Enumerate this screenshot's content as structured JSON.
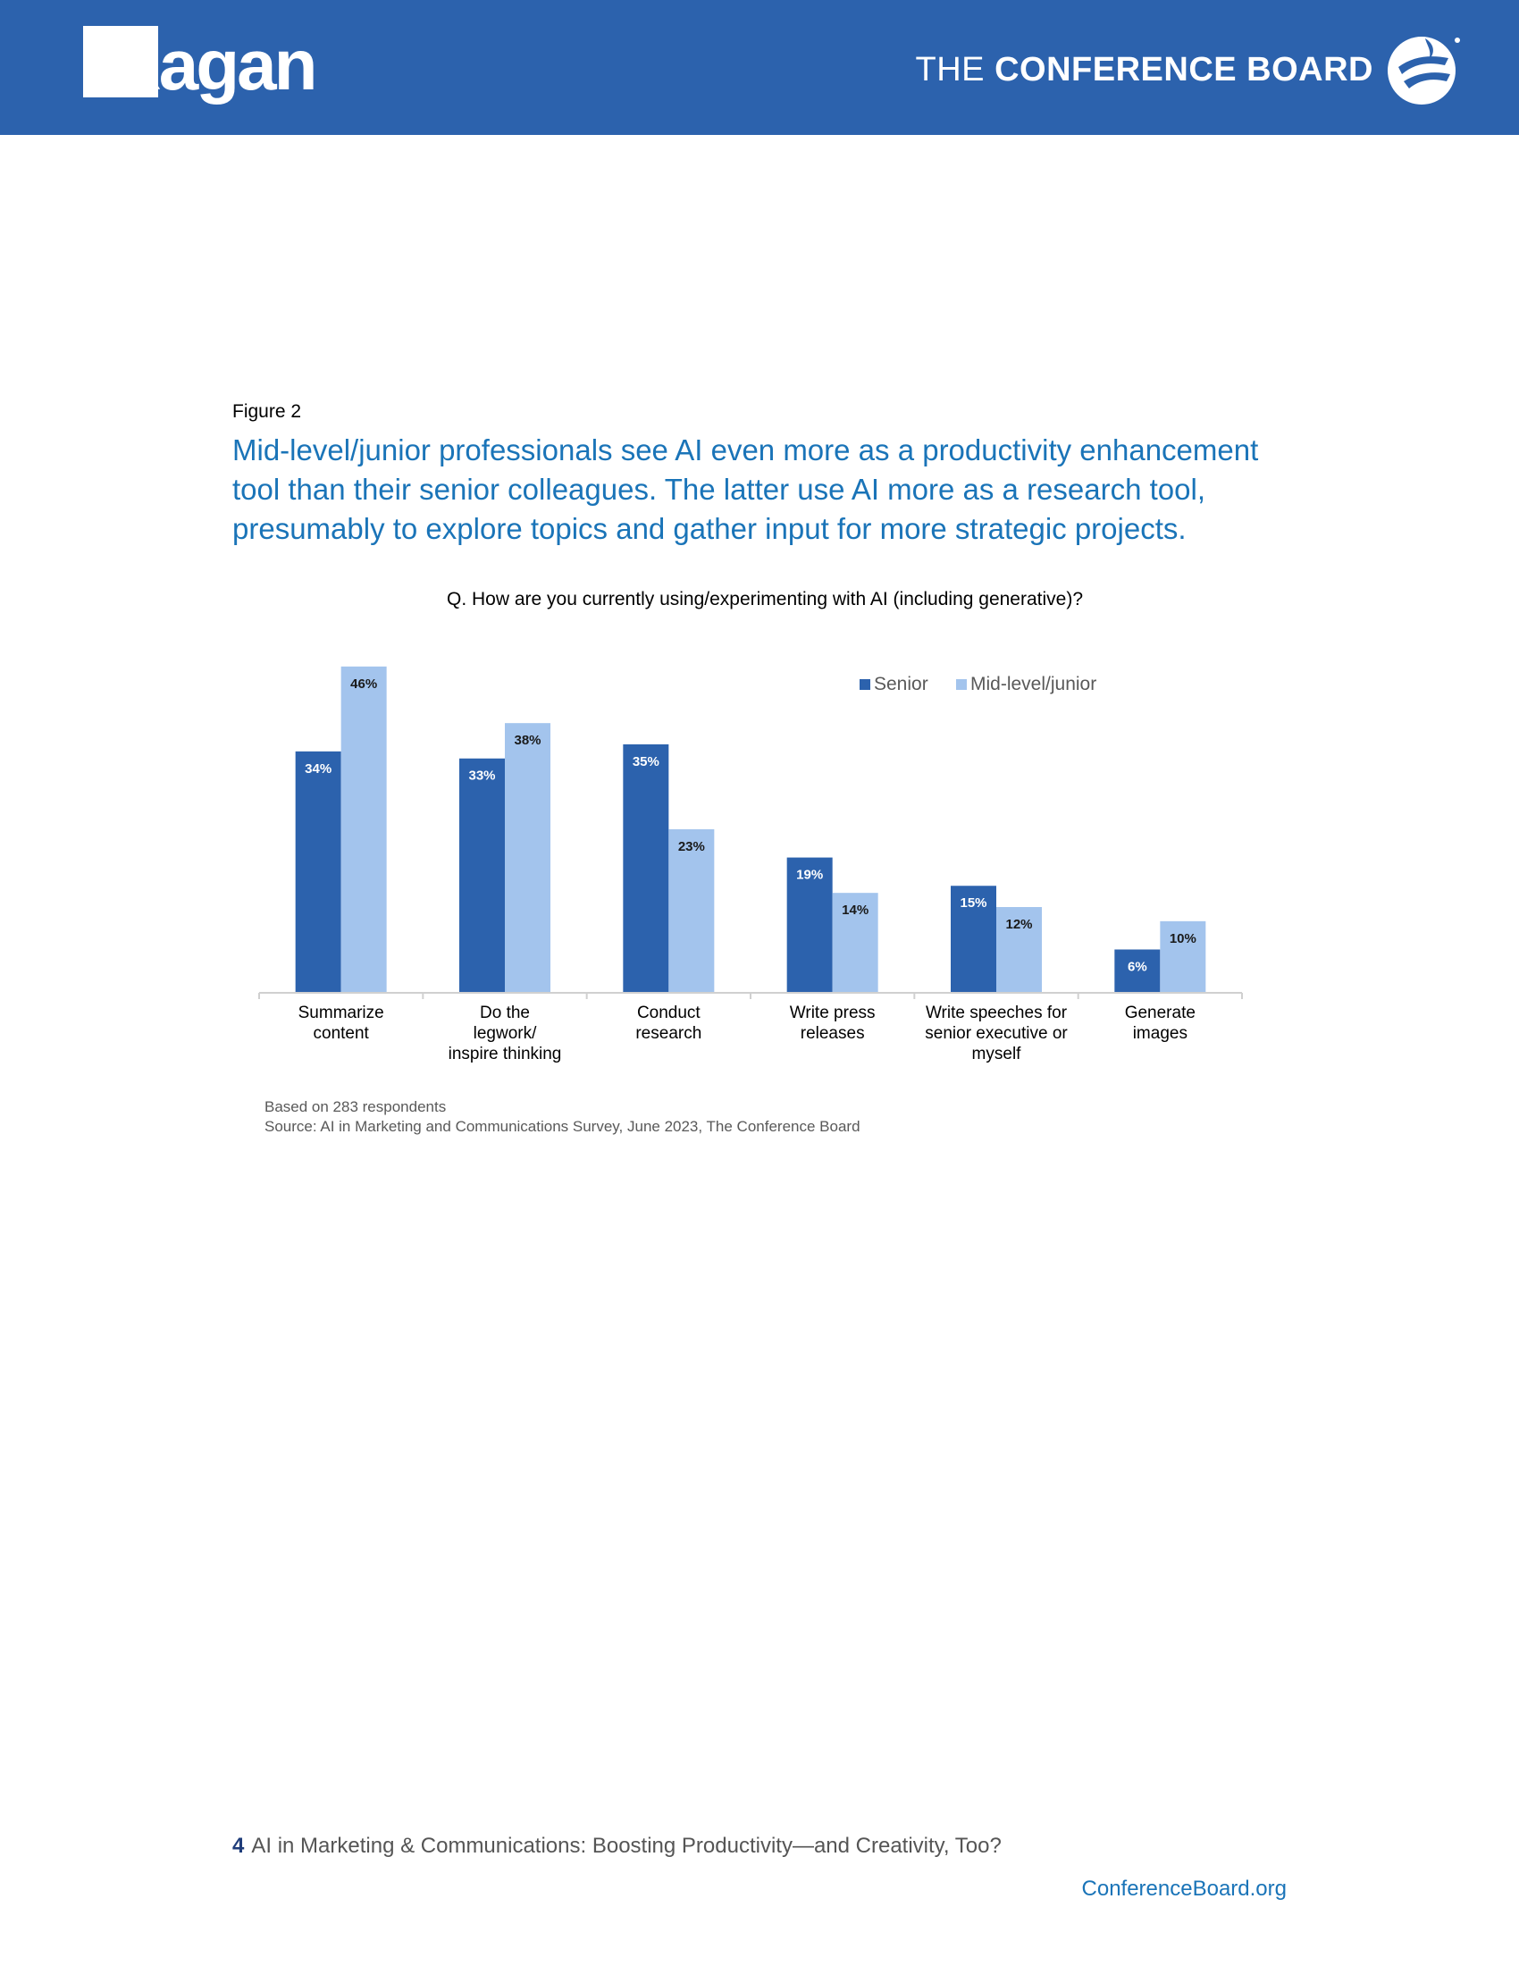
{
  "header": {
    "logo_left_text": "Ragan",
    "logo_right_light": "THE",
    "logo_right_bold": "CONFERENCE BOARD"
  },
  "figure_label": "Figure 2",
  "headline": "Mid-level/junior professionals see AI even more as a productivity enhancement tool than their senior colleagues. The latter use AI more as a research tool, presumably to explore topics and gather input for more strategic projects.",
  "chart_data": {
    "type": "bar",
    "title": "Q. How are you currently using/experimenting with AI (including generative)?",
    "categories": [
      [
        "Summarize",
        "content"
      ],
      [
        "Do the",
        "legwork/",
        "inspire thinking"
      ],
      [
        "Conduct",
        "research"
      ],
      [
        "Write press",
        "releases"
      ],
      [
        "Write speeches for",
        "senior executive or",
        "myself"
      ],
      [
        "Generate",
        "images"
      ]
    ],
    "series": [
      {
        "name": "Senior",
        "color": "#2c62ad",
        "values": [
          34,
          33,
          35,
          19,
          15,
          6
        ],
        "labels": [
          "34%",
          "33%",
          "35%",
          "19%",
          "15%",
          "6%"
        ]
      },
      {
        "name": "Mid-level/junior",
        "color": "#a3c4ed",
        "values": [
          46,
          38,
          23,
          14,
          12,
          10
        ],
        "labels": [
          "46%",
          "38%",
          "23%",
          "14%",
          "12%",
          "10%"
        ]
      }
    ],
    "ylim": [
      0,
      50
    ],
    "legend": "top-right",
    "grid": false
  },
  "notes": {
    "respondents": "Based on 283 respondents",
    "source": "Source: AI in Marketing and Communications Survey, June 2023, The Conference Board"
  },
  "footer": {
    "page_number": "4",
    "title": "AI in Marketing & Communications: Boosting Productivity—and Creativity, Too?",
    "site": "ConferenceBoard.org"
  }
}
